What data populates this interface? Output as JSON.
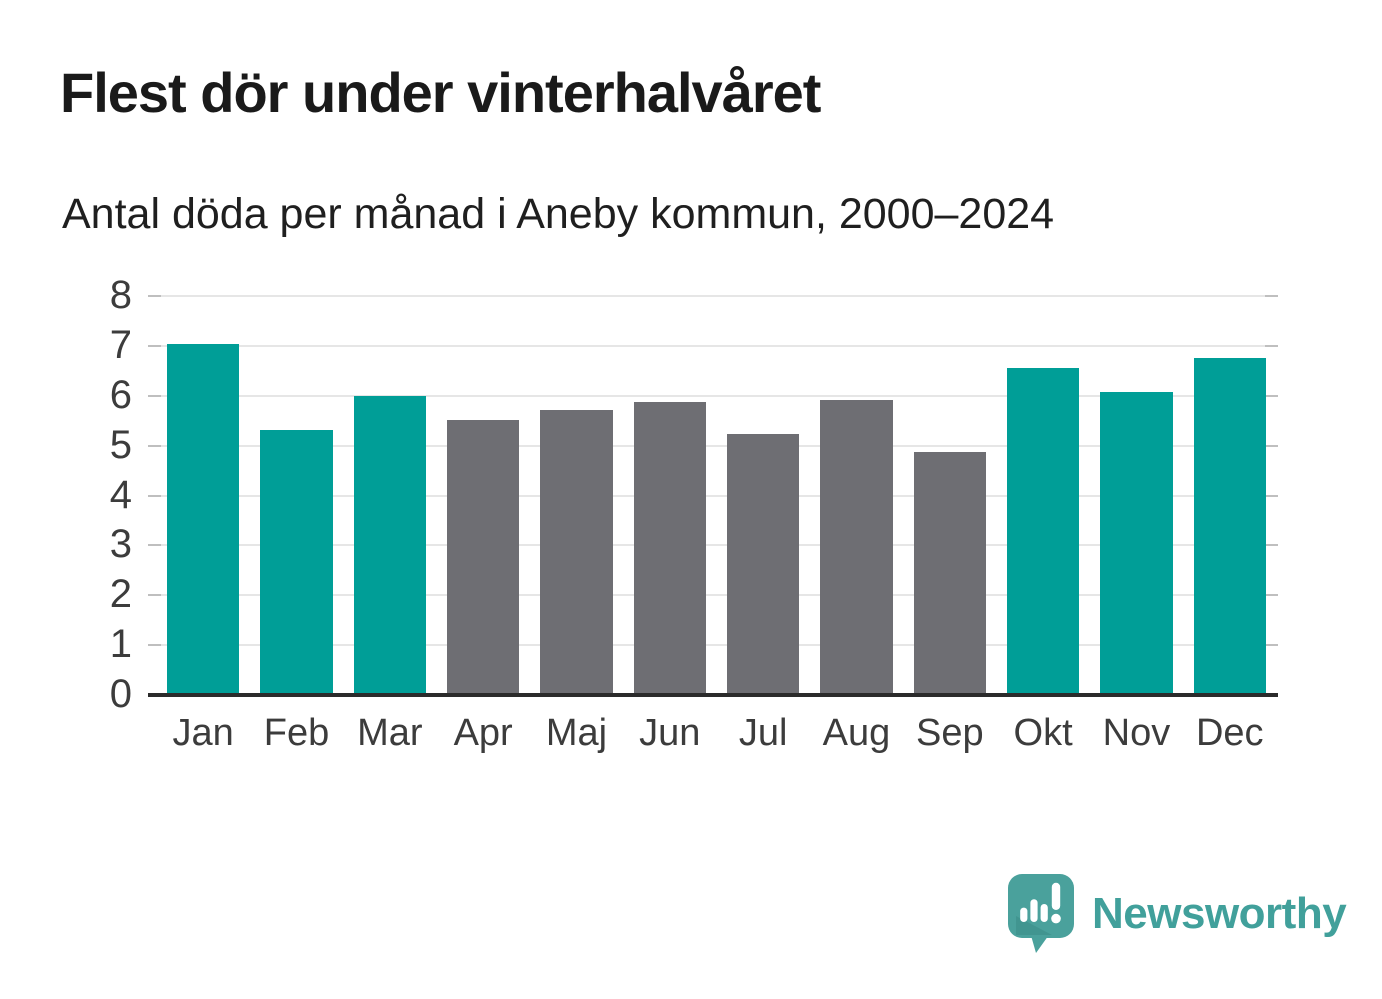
{
  "header": {
    "title": "Flest dör under vinterhalvåret",
    "subtitle": "Antal döda per månad i Aneby kommun, 2000–2024"
  },
  "chart_data": {
    "type": "bar",
    "title": "Flest dör under vinterhalvåret",
    "subtitle": "Antal döda per månad i Aneby kommun, 2000–2024",
    "categories": [
      "Jan",
      "Feb",
      "Mar",
      "Apr",
      "Maj",
      "Jun",
      "Jul",
      "Aug",
      "Sep",
      "Okt",
      "Nov",
      "Dec"
    ],
    "values": [
      7.04,
      5.32,
      6.0,
      5.52,
      5.72,
      5.88,
      5.24,
      5.92,
      4.88,
      6.56,
      6.08,
      6.76
    ],
    "bar_groups": [
      "winter",
      "winter",
      "winter",
      "summer",
      "summer",
      "summer",
      "summer",
      "summer",
      "summer",
      "winter",
      "winter",
      "winter"
    ],
    "group_colors": {
      "winter": "#009e97",
      "summer": "#6e6e73"
    },
    "ylim": [
      0,
      8
    ],
    "yticks": [
      8,
      7,
      6,
      5,
      4,
      3,
      2,
      1,
      0
    ],
    "xlabel": "",
    "ylabel": "",
    "grid": true,
    "legend_position": "none"
  },
  "branding": {
    "logo_text": "Newsworthy",
    "logo_color": "#41a09b",
    "logo_icon": "speech-bubble-bar-chart-icon"
  },
  "colors": {
    "grid": "#e6e6e6",
    "grid_cap": "#bfbfbf",
    "axis_line": "#2b2b2b",
    "tick_text": "#3c3c3c",
    "title_text": "#1a1a1a"
  }
}
